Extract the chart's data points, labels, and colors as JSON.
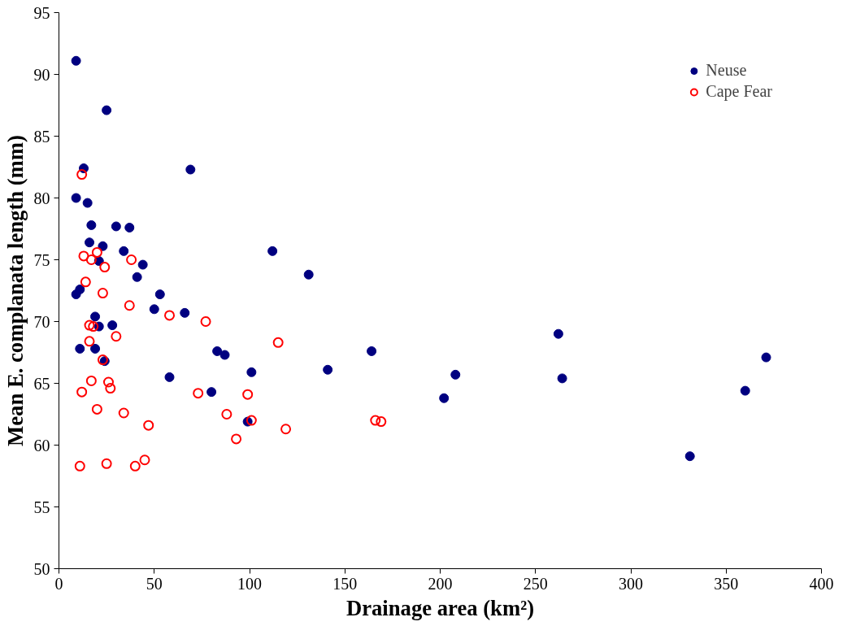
{
  "chart_data": {
    "type": "scatter",
    "xlabel": "Drainage area (km²)",
    "ylabel": "Mean E. complanata length (mm)",
    "xlim": [
      0,
      400
    ],
    "xticks": [
      0,
      50,
      100,
      150,
      200,
      250,
      300,
      350,
      400
    ],
    "ylim": [
      50,
      95
    ],
    "yticks": [
      50,
      55,
      60,
      65,
      70,
      75,
      80,
      85,
      90,
      95
    ],
    "grid": false,
    "legend": "top right",
    "marker": "circle",
    "series": [
      {
        "name": "Neuse",
        "color": "#000080",
        "x": [
          9,
          25,
          13,
          69,
          9,
          15,
          17,
          30,
          37,
          16,
          23,
          34,
          112,
          21,
          44,
          41,
          131,
          11,
          9,
          53,
          50,
          66,
          19,
          21,
          28,
          262,
          11,
          19,
          83,
          87,
          164,
          371,
          24,
          101,
          141,
          208,
          264,
          58,
          80,
          360,
          202,
          99,
          331
        ],
        "values": [
          91.1,
          87.1,
          82.4,
          82.3,
          80,
          79.6,
          77.8,
          77.7,
          77.6,
          76.4,
          76.1,
          75.7,
          75.7,
          74.9,
          74.6,
          73.6,
          73.8,
          72.6,
          72.2,
          72.2,
          71,
          70.7,
          70.4,
          69.6,
          69.7,
          69,
          67.8,
          67.8,
          67.6,
          67.3,
          67.6,
          67.1,
          66.8,
          65.9,
          66.1,
          65.7,
          65.4,
          65.5,
          64.3,
          64.4,
          63.8,
          61.9,
          59.1
        ]
      },
      {
        "name": "Cape Fear",
        "color": "#ff0000",
        "x": [
          12,
          13,
          20,
          17,
          38,
          24,
          14,
          23,
          37,
          58,
          77,
          16,
          18,
          16,
          30,
          115,
          23,
          26,
          17,
          27,
          12,
          73,
          99,
          20,
          34,
          88,
          47,
          101,
          166,
          169,
          119,
          93,
          11,
          25,
          40,
          45
        ],
        "values": [
          81.9,
          75.3,
          75.6,
          75,
          75,
          74.4,
          73.2,
          72.3,
          71.3,
          70.5,
          70,
          69.7,
          69.6,
          68.4,
          68.8,
          68.3,
          66.9,
          65.1,
          65.2,
          64.6,
          64.3,
          64.2,
          64.1,
          62.9,
          62.6,
          62.5,
          61.6,
          62,
          62,
          61.9,
          61.3,
          60.5,
          58.3,
          58.5,
          58.3,
          58.8
        ]
      }
    ]
  }
}
